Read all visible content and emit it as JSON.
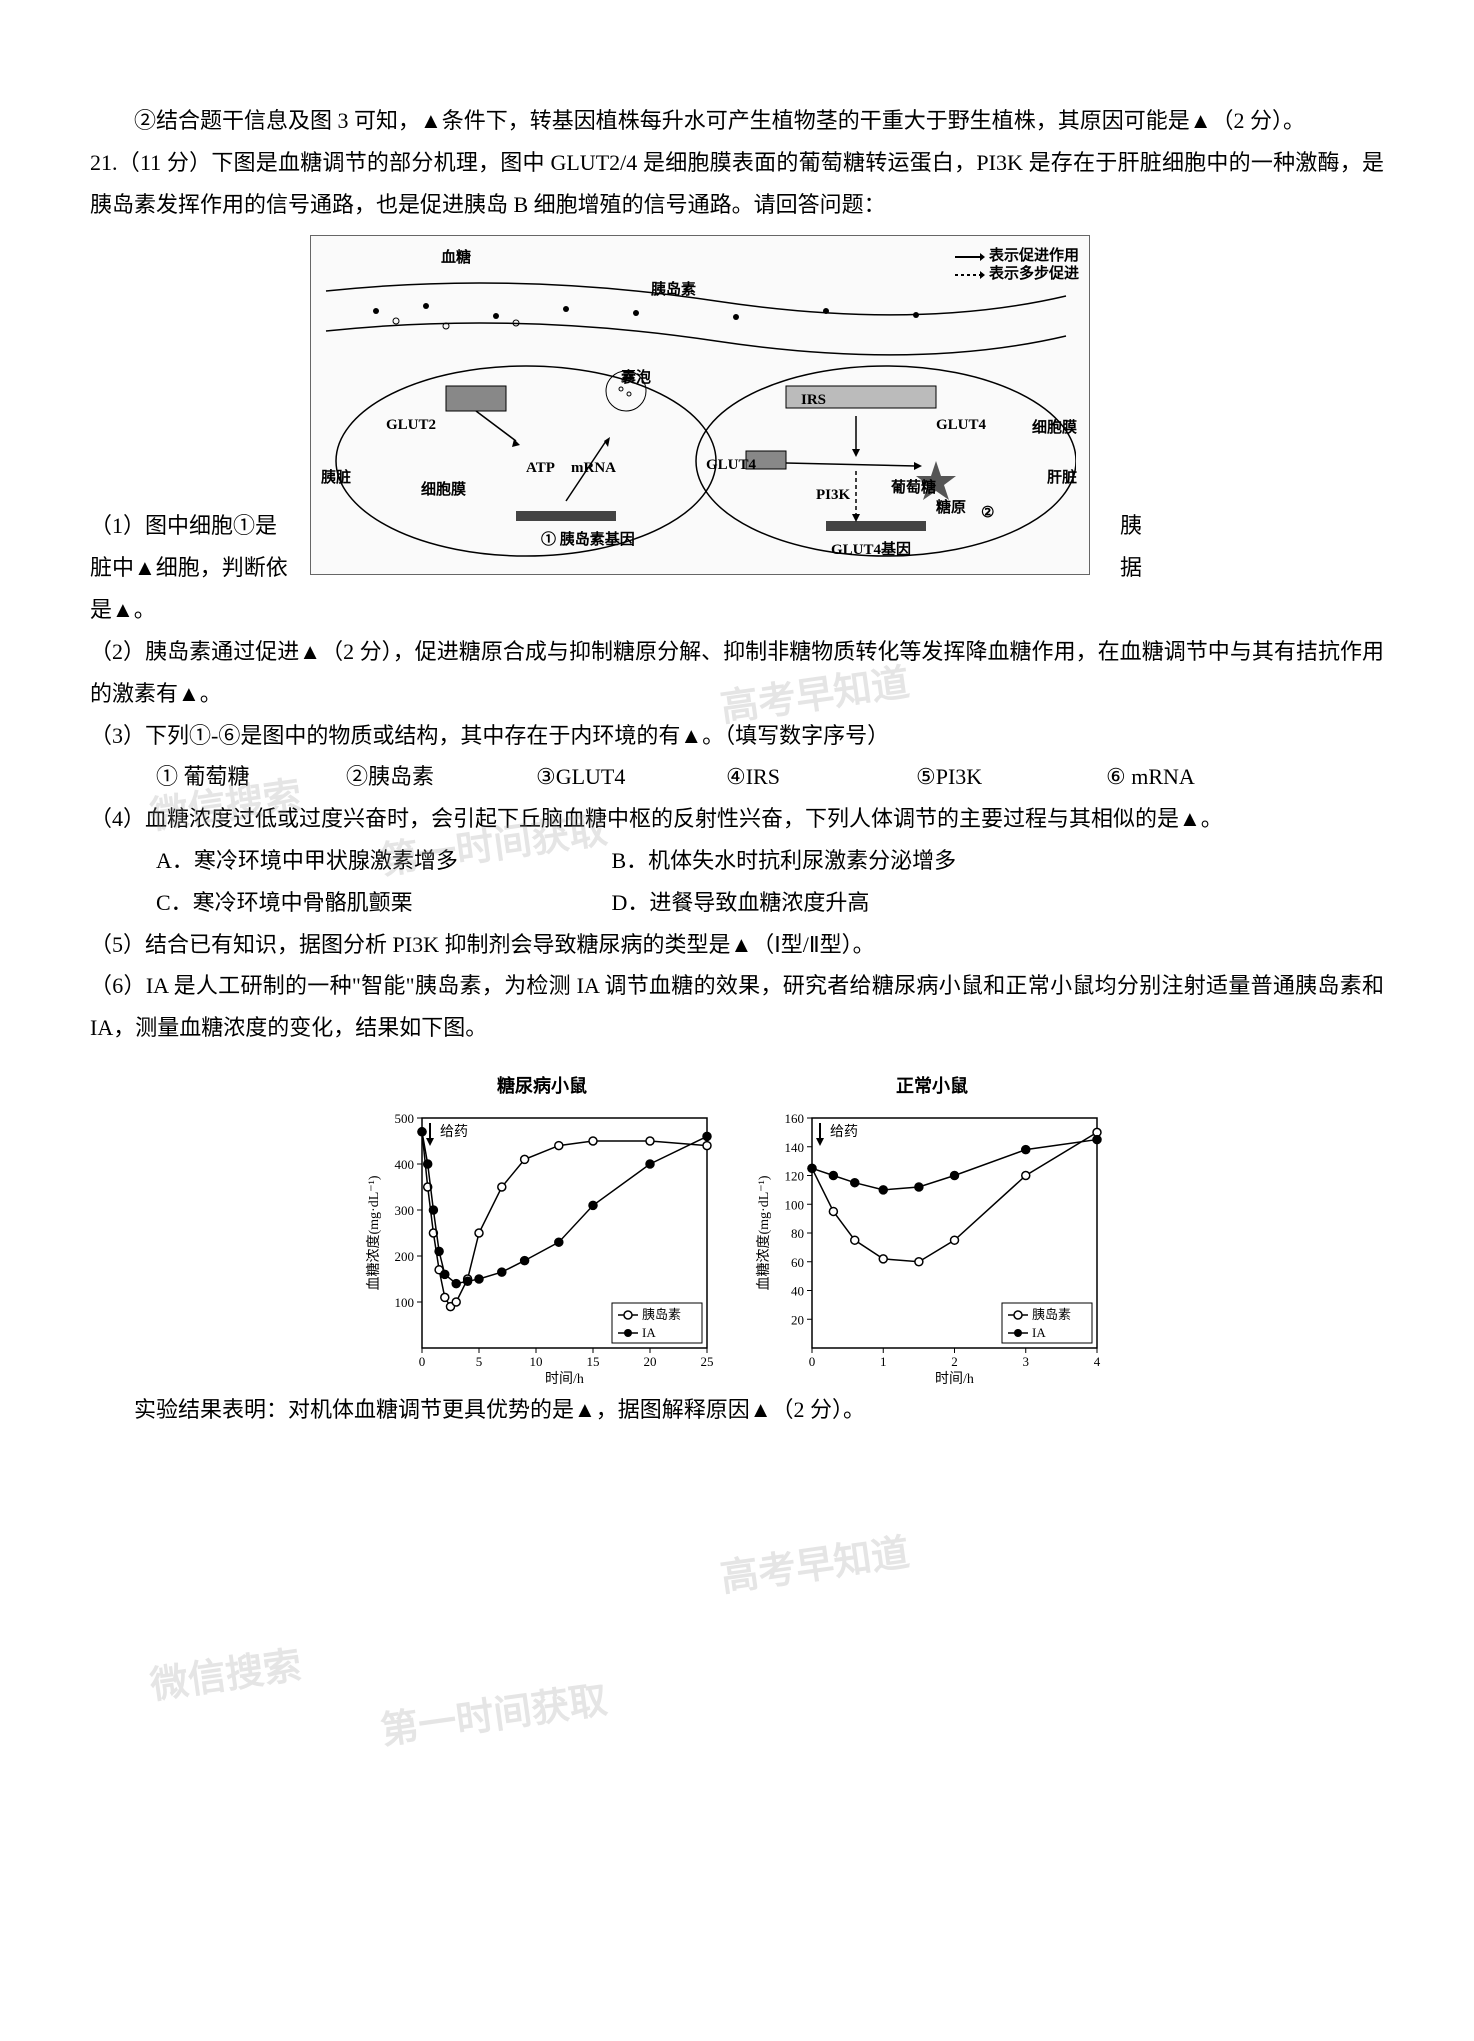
{
  "q20": {
    "part2": "②结合题干信息及图 3 可知，▲条件下，转基因植株每升水可产生植物茎的干重大于野生植株，其原因可能是▲（2 分）。"
  },
  "q21": {
    "intro": "21.（11 分）下图是血糖调节的部分机理，图中 GLUT2/4 是细胞膜表面的葡萄糖转运蛋白，PI3K 是存在于肝脏细胞中的一种激酶，是胰岛素发挥作用的信号通路，也是促进胰岛 B 细胞增殖的信号通路。请回答问题：",
    "diagram": {
      "labels": {
        "blood_sugar": "血糖",
        "insulin": "胰岛素",
        "vesicle": "囊泡",
        "legend_promote": "表示促进作用",
        "legend_multistep": "表示多步促进",
        "glut2": "GLUT2",
        "glut4_1": "GLUT4",
        "glut4_2": "GLUT4",
        "irs": "IRS",
        "atp": "ATP",
        "mrna": "mRNA",
        "pi3k": "PI3K",
        "glycogen": "糖原",
        "glucose": "葡萄糖",
        "pancreas": "胰脏",
        "liver": "肝脏",
        "membrane": "细胞膜",
        "membrane2": "细胞膜",
        "insulin_gene": "① 胰岛素基因",
        "glut4_gene": "GLUT4基因",
        "num2": "②"
      }
    },
    "sub1_a": "（1）图中细胞①是",
    "sub1_b": "胰",
    "sub1_c": "脏中▲细胞，判断依",
    "sub1_d": "据",
    "sub1_e": "是▲。",
    "sub2": "（2）胰岛素通过促进▲（2 分），促进糖原合成与抑制糖原分解、抑制非糖物质转化等发挥降血糖作用，在血糖调节中与其有拮抗作用的激素有▲。",
    "sub3": "（3）下列①-⑥是图中的物质或结构，其中存在于内环境的有▲。（填写数字序号）",
    "options3": {
      "opt1": "① 葡萄糖",
      "opt2": "②胰岛素",
      "opt3": "③GLUT4",
      "opt4": "④IRS",
      "opt5": "⑤PI3K",
      "opt6": "⑥ mRNA"
    },
    "sub4": "（4）血糖浓度过低或过度兴奋时，会引起下丘脑血糖中枢的反射性兴奋，下列人体调节的主要过程与其相似的是▲。",
    "options4": {
      "A": "A．寒冷环境中甲状腺激素增多",
      "B": "B．机体失水时抗利尿激素分泌增多",
      "C": "C．寒冷环境中骨骼肌颤栗",
      "D": "D．进餐导致血糖浓度升高"
    },
    "sub5": "（5）结合已有知识，据图分析 PI3K 抑制剂会导致糖尿病的类型是▲（Ⅰ型/Ⅱ型）。",
    "sub6": "（6）IA 是人工研制的一种\"智能\"胰岛素，为检测 IA 调节血糖的效果，研究者给糖尿病小鼠和正常小鼠均分别注射适量普通胰岛素和 IA，测量血糖浓度的变化，结果如下图。",
    "charts": {
      "chart1": {
        "title": "糖尿病小鼠",
        "ylabel": "血糖浓度(mg·dL⁻¹)",
        "xlabel": "时间/h",
        "ylim": [
          0,
          500
        ],
        "xlim": [
          0,
          25
        ],
        "yticks": [
          100,
          200,
          300,
          400,
          500
        ],
        "xticks": [
          0,
          5,
          10,
          15,
          20,
          25
        ],
        "dose_label": "给药",
        "legend": {
          "insulin": "胰岛素",
          "ia": "IA"
        },
        "series_insulin": {
          "x": [
            0,
            0.5,
            1,
            1.5,
            2,
            2.5,
            3,
            4,
            5,
            7,
            9,
            12,
            15,
            20,
            25
          ],
          "y": [
            470,
            350,
            250,
            170,
            110,
            90,
            100,
            150,
            250,
            350,
            410,
            440,
            450,
            450,
            440
          ],
          "color": "#000000",
          "marker": "open-circle"
        },
        "series_ia": {
          "x": [
            0,
            0.5,
            1,
            1.5,
            2,
            3,
            4,
            5,
            7,
            9,
            12,
            15,
            20,
            25
          ],
          "y": [
            470,
            400,
            300,
            210,
            160,
            140,
            145,
            150,
            165,
            190,
            230,
            310,
            400,
            460
          ],
          "color": "#000000",
          "marker": "filled-circle"
        }
      },
      "chart2": {
        "title": "正常小鼠",
        "ylabel": "血糖浓度(mg·dL⁻¹)",
        "xlabel": "时间/h",
        "ylim": [
          0,
          160
        ],
        "xlim": [
          0,
          4
        ],
        "yticks": [
          20,
          40,
          60,
          80,
          100,
          120,
          140,
          160
        ],
        "xticks": [
          0,
          1,
          2,
          3,
          4
        ],
        "dose_label": "给药",
        "legend": {
          "insulin": "胰岛素",
          "ia": "IA"
        },
        "series_insulin": {
          "x": [
            0,
            0.3,
            0.6,
            1,
            1.5,
            2,
            3,
            4
          ],
          "y": [
            125,
            95,
            75,
            62,
            60,
            75,
            120,
            150
          ],
          "color": "#000000",
          "marker": "open-circle"
        },
        "series_ia": {
          "x": [
            0,
            0.3,
            0.6,
            1,
            1.5,
            2,
            3,
            4
          ],
          "y": [
            125,
            120,
            115,
            110,
            112,
            120,
            138,
            145
          ],
          "color": "#000000",
          "marker": "filled-circle"
        }
      }
    },
    "conclusion": "实验结果表明：对机体血糖调节更具优势的是▲，据图解释原因▲（2 分）。"
  },
  "watermarks": {
    "w1": "高考早知道",
    "w2": "微信搜索",
    "w3": "第一时间获取"
  },
  "colors": {
    "text": "#000000",
    "background": "#ffffff",
    "watermark": "rgba(150,150,150,0.25)",
    "diagram_border": "#666666",
    "chart_line": "#000000"
  }
}
